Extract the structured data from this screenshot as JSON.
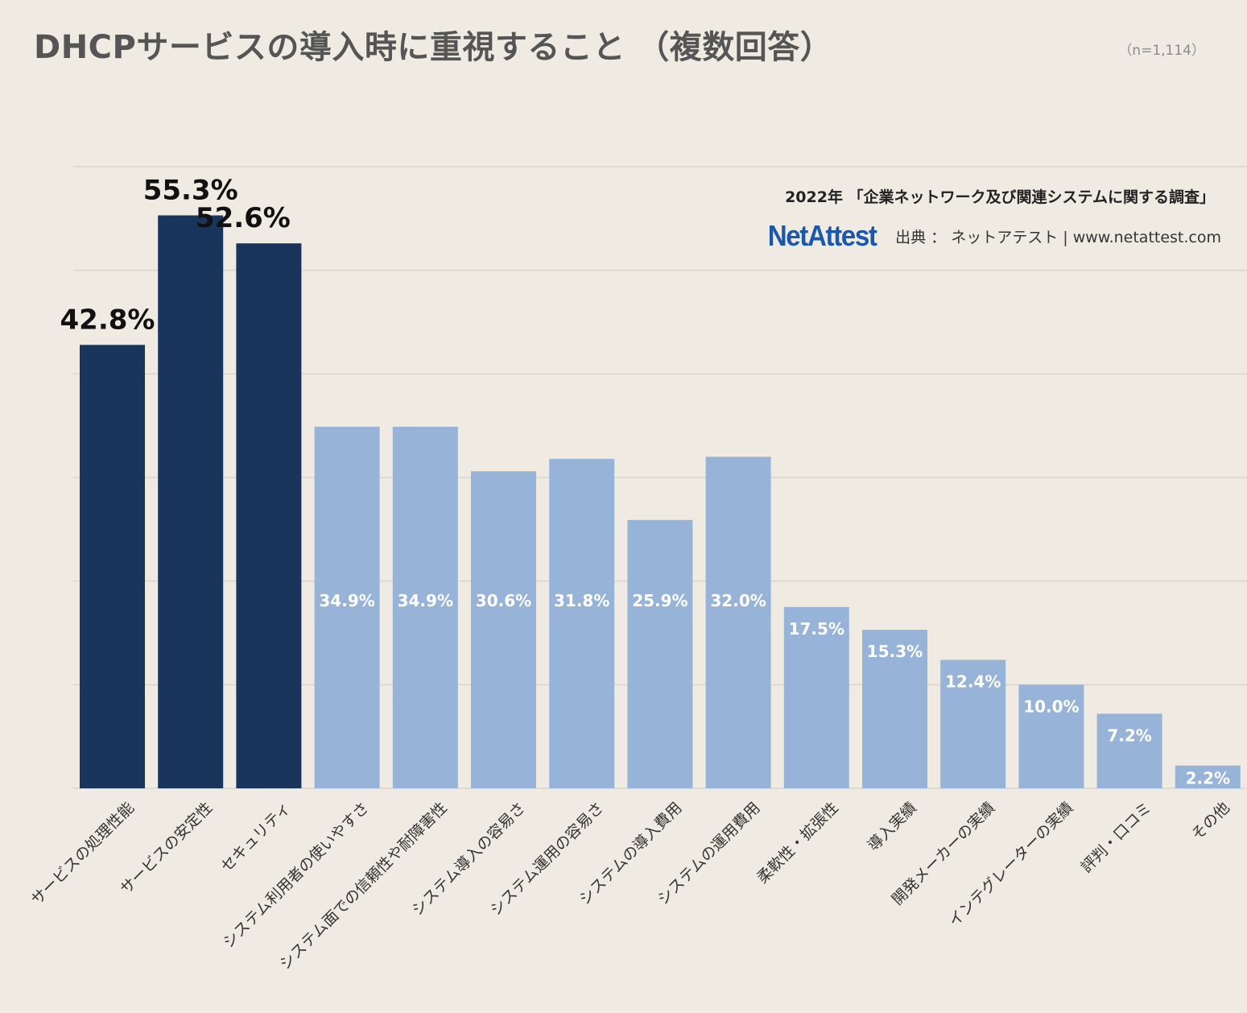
{
  "header": {
    "title": "DHCPサービスの導入時に重視すること （複数回答）",
    "sample": "（n=1,114）"
  },
  "survey_note": "2022年 「企業ネットワーク及び関連システムに関する調査」",
  "logo_text": "NetAttest",
  "source_text": "出典 ： ネットアテスト | www.netattest.com",
  "colors": {
    "background": "#efebe2",
    "highlight_bar": "#1a355b",
    "normal_bar": "#97b3d8",
    "grid": "#d9d6cf",
    "logo": "#1c58a8"
  },
  "chart_data": {
    "type": "bar",
    "title": "DHCPサービスの導入時に重視すること （複数回答）",
    "categories": [
      "サービスの処理性能",
      "サービスの安定性",
      "セキュリティ",
      "システム利用者の使いやすさ",
      "システム面での信頼性や耐障害性",
      "システム導入の容易さ",
      "システム運用の容易さ",
      "システムの導入費用",
      "システムの運用費用",
      "柔軟性・拡張性",
      "導入実績",
      "開発メーカーの実績",
      "インテグレーターの実績",
      "評判・口コミ",
      "その他"
    ],
    "values": [
      42.8,
      55.3,
      52.6,
      34.9,
      34.9,
      30.6,
      31.8,
      25.9,
      32.0,
      17.5,
      15.3,
      12.4,
      10.0,
      7.2,
      2.2
    ],
    "labels": [
      "42.8%",
      "55.3%",
      "52.6%",
      "34.9%",
      "34.9%",
      "30.6%",
      "31.8%",
      "25.9%",
      "32.0%",
      "17.5%",
      "15.3%",
      "12.4%",
      "10.0%",
      "7.2%",
      "2.2%"
    ],
    "highlighted_count": 3,
    "ylim": [
      0,
      60
    ],
    "y_grid_step": 10,
    "grid": true,
    "y_tick_labels_shown": false,
    "xlabel": "",
    "ylabel": ""
  }
}
